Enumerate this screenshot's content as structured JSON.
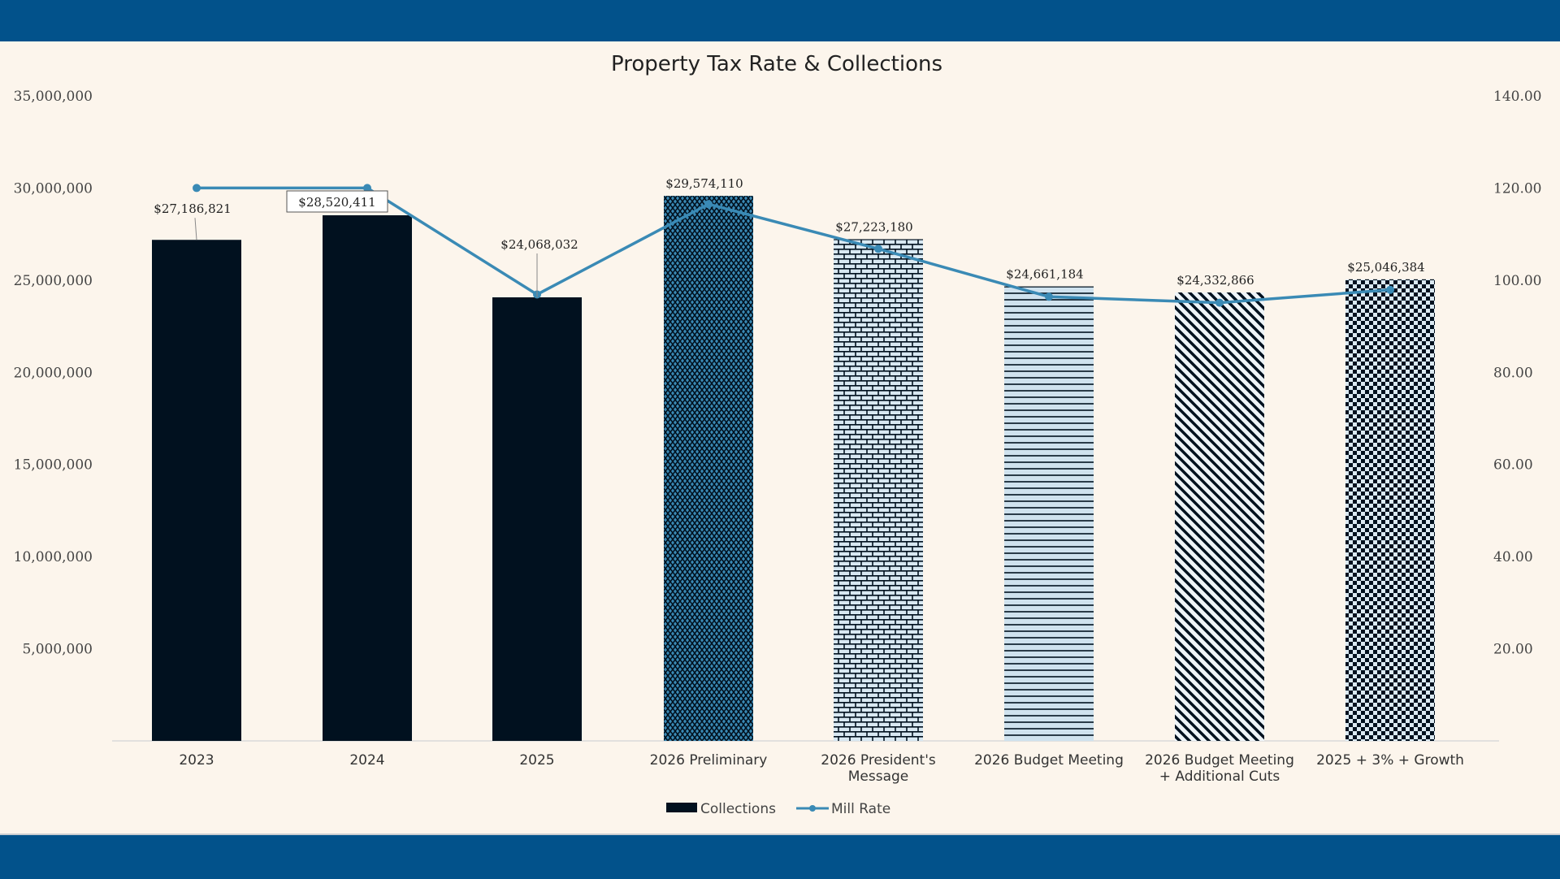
{
  "colors": {
    "band": "#02528b",
    "background": "#fcf5ec",
    "bar": "#01111f",
    "line": "#3a8ab5"
  },
  "chart_data": {
    "type": "bar+line",
    "title": "Property Tax Rate & Collections",
    "categories": [
      "2023",
      "2024",
      "2025",
      "2026 Preliminary",
      "2026 President's\nMessage",
      "2026 Budget Meeting",
      "2026 Budget Meeting\n+ Additional Cuts",
      "2025 + 3% + Growth"
    ],
    "series": [
      {
        "name": "Collections",
        "type": "bar",
        "axis": "left",
        "values": [
          27186821,
          28520411,
          24068032,
          29574110,
          27223180,
          24661184,
          24332866,
          25046384
        ],
        "labels": [
          "$27,186,821",
          "$28,520,411",
          "$24,068,032",
          "$29,574,110",
          "$27,223,180",
          "$24,661,184",
          "$24,332,866",
          "$25,046,384"
        ],
        "patterns": [
          "solid",
          "solid",
          "solid",
          "dense-diamond",
          "brick",
          "horizontal",
          "diagonal",
          "checker"
        ]
      },
      {
        "name": "Mill Rate",
        "type": "line",
        "axis": "right",
        "values": [
          120,
          120,
          96.9,
          116.5,
          106.8,
          96.4,
          95.1,
          97.9
        ]
      }
    ],
    "y_left": {
      "range": [
        0,
        35000000
      ],
      "ticks": [
        "",
        "5,000,000",
        "10,000,000",
        "15,000,000",
        "20,000,000",
        "25,000,000",
        "30,000,000",
        "35,000,000"
      ]
    },
    "y_right": {
      "range": [
        0,
        140
      ],
      "ticks": [
        "",
        "20.00",
        "40.00",
        "60.00",
        "80.00",
        "100.00",
        "120.00",
        "140.00"
      ]
    },
    "grid": false,
    "legend": "bottom"
  }
}
